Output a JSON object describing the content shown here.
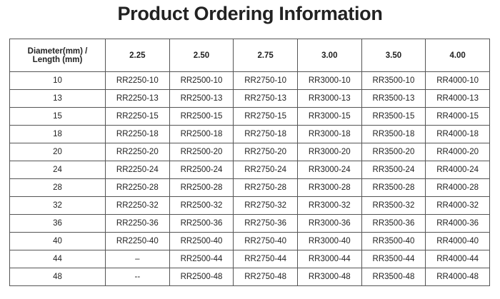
{
  "header": {
    "title": "Product Ordering Information"
  },
  "table": {
    "columns": [
      "Diameter(mm) / Length (mm)",
      "2.25",
      "2.50",
      "2.75",
      "3.00",
      "3.50",
      "4.00"
    ],
    "rows": [
      [
        "10",
        "RR2250-10",
        "RR2500-10",
        "RR2750-10",
        "RR3000-10",
        "RR3500-10",
        "RR4000-10"
      ],
      [
        "13",
        "RR2250-13",
        "RR2500-13",
        "RR2750-13",
        "RR3000-13",
        "RR3500-13",
        "RR4000-13"
      ],
      [
        "15",
        "RR2250-15",
        "RR2500-15",
        "RR2750-15",
        "RR3000-15",
        "RR3500-15",
        "RR4000-15"
      ],
      [
        "18",
        "RR2250-18",
        "RR2500-18",
        "RR2750-18",
        "RR3000-18",
        "RR3500-18",
        "RR4000-18"
      ],
      [
        "20",
        "RR2250-20",
        "RR2500-20",
        "RR2750-20",
        "RR3000-20",
        "RR3500-20",
        "RR4000-20"
      ],
      [
        "24",
        "RR2250-24",
        "RR2500-24",
        "RR2750-24",
        "RR3000-24",
        "RR3500-24",
        "RR4000-24"
      ],
      [
        "28",
        "RR2250-28",
        "RR2500-28",
        "RR2750-28",
        "RR3000-28",
        "RR3500-28",
        "RR4000-28"
      ],
      [
        "32",
        "RR2250-32",
        "RR2500-32",
        "RR2750-32",
        "RR3000-32",
        "RR3500-32",
        "RR4000-32"
      ],
      [
        "36",
        "RR2250-36",
        "RR2500-36",
        "RR2750-36",
        "RR3000-36",
        "RR3500-36",
        "RR4000-36"
      ],
      [
        "40",
        "RR2250-40",
        "RR2500-40",
        "RR2750-40",
        "RR3000-40",
        "RR3500-40",
        "RR4000-40"
      ],
      [
        "44",
        "–",
        "RR2500-44",
        "RR2750-44",
        "RR3000-44",
        "RR3500-44",
        "RR4000-44"
      ],
      [
        "48",
        "--",
        "RR2500-48",
        "RR2750-48",
        "RR3000-48",
        "RR3500-48",
        "RR4000-48"
      ]
    ]
  }
}
